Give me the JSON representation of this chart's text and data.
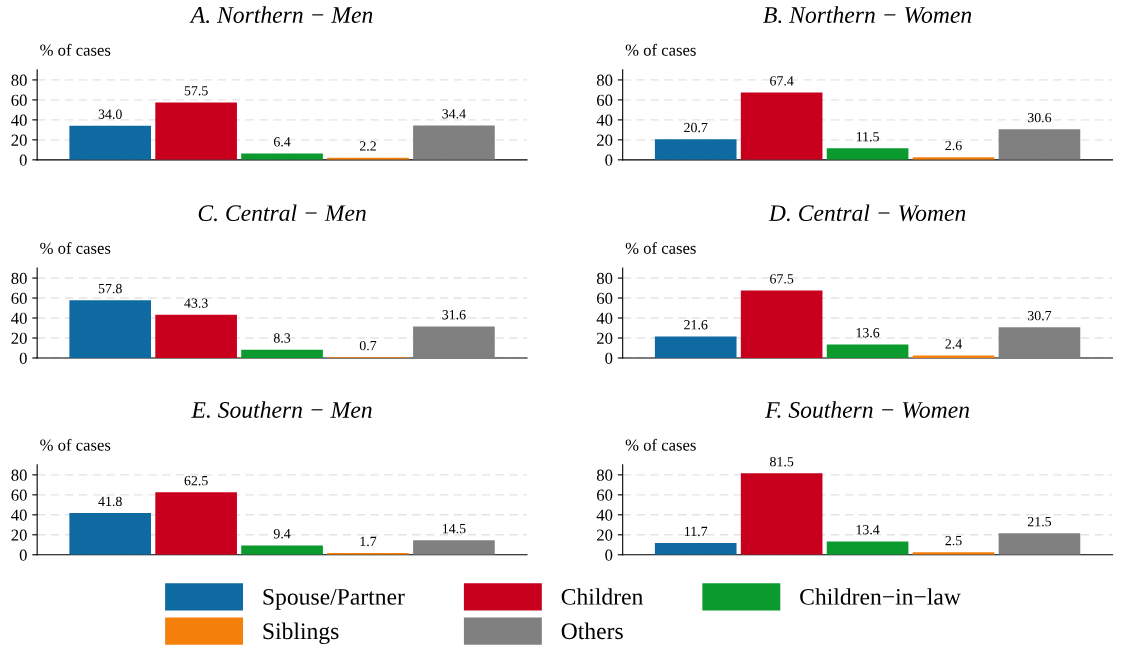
{
  "chart_data": [
    {
      "type": "bar",
      "title": "A. Northern − Men",
      "ylabel": "% of cases",
      "categories": [
        null
      ],
      "ylim": [
        0,
        90
      ],
      "yticks": [
        0,
        20,
        40,
        60,
        80
      ],
      "grid": "y",
      "legend": "bottom",
      "series": [
        {
          "name": "Spouse/Partner",
          "color": "#0e6aa0",
          "values": [
            34.0
          ],
          "value_labels": [
            "34.0"
          ]
        },
        {
          "name": "Children",
          "color": "#c8001e",
          "values": [
            57.5
          ],
          "value_labels": [
            "57.5"
          ]
        },
        {
          "name": "Children−in−law",
          "color": "#0a9a2e",
          "values": [
            6.4
          ],
          "value_labels": [
            "6.4"
          ]
        },
        {
          "name": "Siblings",
          "color": "#f57f0b",
          "values": [
            2.2
          ],
          "value_labels": [
            "2.2"
          ]
        },
        {
          "name": "Others",
          "color": "#808080",
          "values": [
            34.4
          ],
          "value_labels": [
            "34.4"
          ]
        }
      ]
    },
    {
      "type": "bar",
      "title": "B. Northern − Women",
      "ylabel": "% of cases",
      "categories": [
        null
      ],
      "ylim": [
        0,
        90
      ],
      "yticks": [
        0,
        20,
        40,
        60,
        80
      ],
      "grid": "y",
      "series": [
        {
          "color": "#0e6aa0",
          "values": [
            20.7
          ],
          "value_labels": [
            "20.7"
          ]
        },
        {
          "color": "#c8001e",
          "values": [
            67.4
          ],
          "value_labels": [
            "67.4"
          ]
        },
        {
          "color": "#0a9a2e",
          "values": [
            11.5
          ],
          "value_labels": [
            "11.5"
          ]
        },
        {
          "color": "#f57f0b",
          "values": [
            2.6
          ],
          "value_labels": [
            "2.6"
          ]
        },
        {
          "color": "#808080",
          "values": [
            30.6
          ],
          "value_labels": [
            "30.6"
          ]
        }
      ]
    },
    {
      "type": "bar",
      "title": "C. Central − Men",
      "ylabel": "% of cases",
      "categories": [
        null
      ],
      "ylim": [
        0,
        90
      ],
      "yticks": [
        0,
        20,
        40,
        60,
        80
      ],
      "grid": "y",
      "series": [
        {
          "color": "#0e6aa0",
          "values": [
            57.8
          ],
          "value_labels": [
            "57.8"
          ]
        },
        {
          "color": "#c8001e",
          "values": [
            43.3
          ],
          "value_labels": [
            "43.3"
          ]
        },
        {
          "color": "#0a9a2e",
          "values": [
            8.3
          ],
          "value_labels": [
            "8.3"
          ]
        },
        {
          "color": "#f57f0b",
          "values": [
            0.7
          ],
          "value_labels": [
            "0.7"
          ]
        },
        {
          "color": "#808080",
          "values": [
            31.6
          ],
          "value_labels": [
            "31.6"
          ]
        }
      ]
    },
    {
      "type": "bar",
      "title": "D. Central − Women",
      "ylabel": "% of cases",
      "categories": [
        null
      ],
      "ylim": [
        0,
        90
      ],
      "yticks": [
        0,
        20,
        40,
        60,
        80
      ],
      "grid": "y",
      "series": [
        {
          "color": "#0e6aa0",
          "values": [
            21.6
          ],
          "value_labels": [
            "21.6"
          ]
        },
        {
          "color": "#c8001e",
          "values": [
            67.5
          ],
          "value_labels": [
            "67.5"
          ]
        },
        {
          "color": "#0a9a2e",
          "values": [
            13.6
          ],
          "value_labels": [
            "13.6"
          ]
        },
        {
          "color": "#f57f0b",
          "values": [
            2.4
          ],
          "value_labels": [
            "2.4"
          ]
        },
        {
          "color": "#808080",
          "values": [
            30.7
          ],
          "value_labels": [
            "30.7"
          ]
        }
      ]
    },
    {
      "type": "bar",
      "title": "E. Southern − Men",
      "ylabel": "% of cases",
      "categories": [
        null
      ],
      "ylim": [
        0,
        90
      ],
      "yticks": [
        0,
        20,
        40,
        60,
        80
      ],
      "grid": "y",
      "series": [
        {
          "color": "#0e6aa0",
          "values": [
            41.8
          ],
          "value_labels": [
            "41.8"
          ]
        },
        {
          "color": "#c8001e",
          "values": [
            62.5
          ],
          "value_labels": [
            "62.5"
          ]
        },
        {
          "color": "#0a9a2e",
          "values": [
            9.4
          ],
          "value_labels": [
            "9.4"
          ]
        },
        {
          "color": "#f57f0b",
          "values": [
            1.7
          ],
          "value_labels": [
            "1.7"
          ]
        },
        {
          "color": "#808080",
          "values": [
            14.5
          ],
          "value_labels": [
            "14.5"
          ]
        }
      ]
    },
    {
      "type": "bar",
      "title": "F. Southern − Women",
      "ylabel": "% of cases",
      "categories": [
        null
      ],
      "ylim": [
        0,
        90
      ],
      "yticks": [
        0,
        20,
        40,
        60,
        80
      ],
      "grid": "y",
      "series": [
        {
          "color": "#0e6aa0",
          "values": [
            11.7
          ],
          "value_labels": [
            "11.7"
          ]
        },
        {
          "color": "#c8001e",
          "values": [
            81.5
          ],
          "value_labels": [
            "81.5"
          ]
        },
        {
          "color": "#0a9a2e",
          "values": [
            13.4
          ],
          "value_labels": [
            "13.4"
          ]
        },
        {
          "color": "#f57f0b",
          "values": [
            2.5
          ],
          "value_labels": [
            "2.5"
          ]
        },
        {
          "color": "#808080",
          "values": [
            21.5
          ],
          "value_labels": [
            "21.5"
          ]
        }
      ]
    }
  ]
}
